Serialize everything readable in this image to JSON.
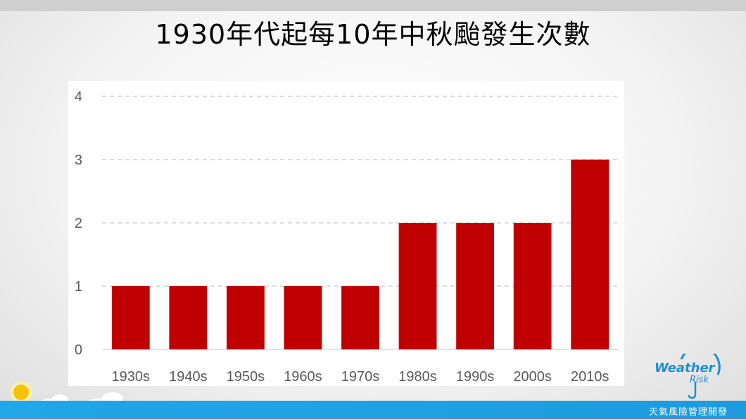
{
  "title": "1930年代起每10年中秋颱發生次數",
  "footer": "天氣風險管理開發",
  "logo": {
    "word1": "Weather",
    "word2": "Risk"
  },
  "colors": {
    "bar": "#c00000",
    "accent": "#1e9bdc"
  },
  "chart_data": {
    "type": "bar",
    "categories": [
      "1930s",
      "1940s",
      "1950s",
      "1960s",
      "1970s",
      "1980s",
      "1990s",
      "2000s",
      "2010s"
    ],
    "values": [
      1,
      1,
      1,
      1,
      1,
      2,
      2,
      2,
      3
    ],
    "yticks": [
      "0",
      "1",
      "2",
      "3",
      "4"
    ],
    "ylim": [
      0,
      4
    ],
    "grid": true,
    "title": "1930年代起每10年中秋颱發生次數"
  }
}
